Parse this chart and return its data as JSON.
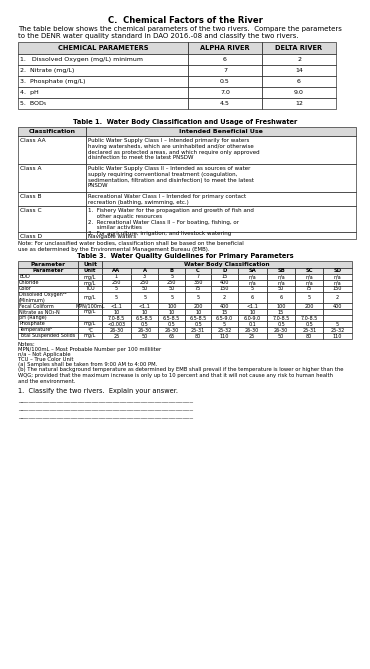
{
  "title": "C.  Chemical Factors of the River",
  "intro": "The table below shows the chemical parameters of the two rivers.  Compare the parameters\nto the DENR water quality standard in DAO 2016.-08 and classify the two rivers.",
  "chem_headers": [
    "CHEMICAL PARAMETERS",
    "ALPHA RIVER",
    "DELTA RIVER"
  ],
  "chem_rows": [
    [
      "1.   Dissolved Oxygen (mg/L) minimum",
      "6",
      "2"
    ],
    [
      "2.  Nitrate (mg/L)",
      "7",
      "14"
    ],
    [
      "3.  Phosphate (mg/L)",
      "0.5",
      "6"
    ],
    [
      "4.  pH",
      "7.0",
      "9.0"
    ],
    [
      "5.  BOD₅",
      "4.5",
      "12"
    ]
  ],
  "table1_title": "Table 1.  Water Body Classification and Usage of Freshwater",
  "table1_headers": [
    "Classification",
    "Intended Beneficial Use"
  ],
  "table1_rows": [
    [
      "Class AA",
      "Public Water Supply Class I – Intended primarily for waters\nhaving watersheds, which are uninhabited and/or otherwise\ndeclared as protected areas, and which require only approved\ndisinfection to meet the latest PNSDW"
    ],
    [
      "Class A",
      "Public Water Supply Class II – Intended as sources of water\nsupply requiring conventional treatment (coagulation,\nsedimentation, filtration and disinfection) to meet the latest\nPNSDW"
    ],
    [
      "Class B",
      "Recreational Water Class I – Intended for primary contact\nrecreation (bathing, swimming, etc.)"
    ],
    [
      "Class C",
      "1.  Fishery Water for the propagation and growth of fish and\n     other aquatic resources\n2.  Recreational Water Class II – For boating, fishing, or\n     similar activities\n3.  For agriculture, irrigation, and livestock watering"
    ],
    [
      "Class D",
      "Navigable waters"
    ]
  ],
  "table1_note": "Note: For unclassified water bodies, classification shall be based on the beneficial\nuse as determined by the Environmental Management Bureau (EMB).",
  "table3_title": "Table 3.  Water Quality Guidelines for Primary Parameters",
  "table3_col_headers": [
    "Parameter",
    "Unit",
    "AA",
    "A",
    "B",
    "C",
    "D",
    "SA",
    "SB",
    "SC",
    "SD"
  ],
  "table3_rows": [
    [
      "BOD",
      "mg/L",
      "1",
      "3",
      "5",
      "7",
      "15",
      "n/a",
      "n/a",
      "n/a",
      "n/a"
    ],
    [
      "Chloride",
      "mg/L",
      "250",
      "250",
      "250",
      "350",
      "400",
      "n/a",
      "n/a",
      "n/a",
      "n/a"
    ],
    [
      "Color",
      "TCU",
      "5",
      "50",
      "50",
      "75",
      "150",
      "5",
      "50",
      "75",
      "150"
    ],
    [
      "Dissolved Oxygenᵃᵃ\n(Minimum)",
      "mg/L",
      "5",
      "5",
      "5",
      "5",
      "2",
      "6",
      "6",
      "5",
      "2"
    ],
    [
      "Fecal Coliform",
      "MPN/100mL",
      "<1.1",
      "<1.1",
      "100",
      "200",
      "400",
      "<1.1",
      "100",
      "200",
      "400"
    ],
    [
      "Nitrate as NO₃-N",
      "mg/L",
      "10",
      "10",
      "10",
      "10",
      "15",
      "10",
      "15",
      "",
      ""
    ],
    [
      "pH (Range)",
      "",
      "7.0-8.5",
      "6.5-8.5",
      "6.5-8.5",
      "6.5-8.5",
      "6.5-9.0",
      "6.0-9.0",
      "7.0-8.5",
      "7.0-8.5",
      ""
    ],
    [
      "Phosphate",
      "mg/L",
      "<0.003",
      "0.5",
      "0.5",
      "0.5",
      "5",
      "0.1",
      "0.5",
      "0.5",
      "5"
    ],
    [
      "Temperatureᵇ",
      "°C",
      "26-30",
      "26-30",
      "26-30",
      "25-31",
      "25-32",
      "26-30",
      "26-30",
      "25-31",
      "25-32"
    ],
    [
      "Total Suspended Solids",
      "mg/L",
      "25",
      "50",
      "65",
      "80",
      "110",
      "25",
      "50",
      "80",
      "110"
    ]
  ],
  "table3_notes_header": "Notes:",
  "table3_notes": [
    "MPN/100mL – Most Probable Number per 100 milliliter",
    "n/a – Not Applicable",
    "TCU – True Color Unit",
    "(a) Samples shall be taken from 9:00 AM to 4:00 PM.",
    "(b) The natural background temperature as determined by EMB shall prevail if the temperature is lower or higher than the\nWQG; provided that the maximum increase is only up to 10 percent and that it will not cause any risk to human health\nand the environment."
  ],
  "classify_question": "1.  Classify the two rivers.  Explain your answer.",
  "answer_lines": 3,
  "bg_color": "#ffffff",
  "header_color": "#d9d9d9",
  "border_color": "#000000"
}
